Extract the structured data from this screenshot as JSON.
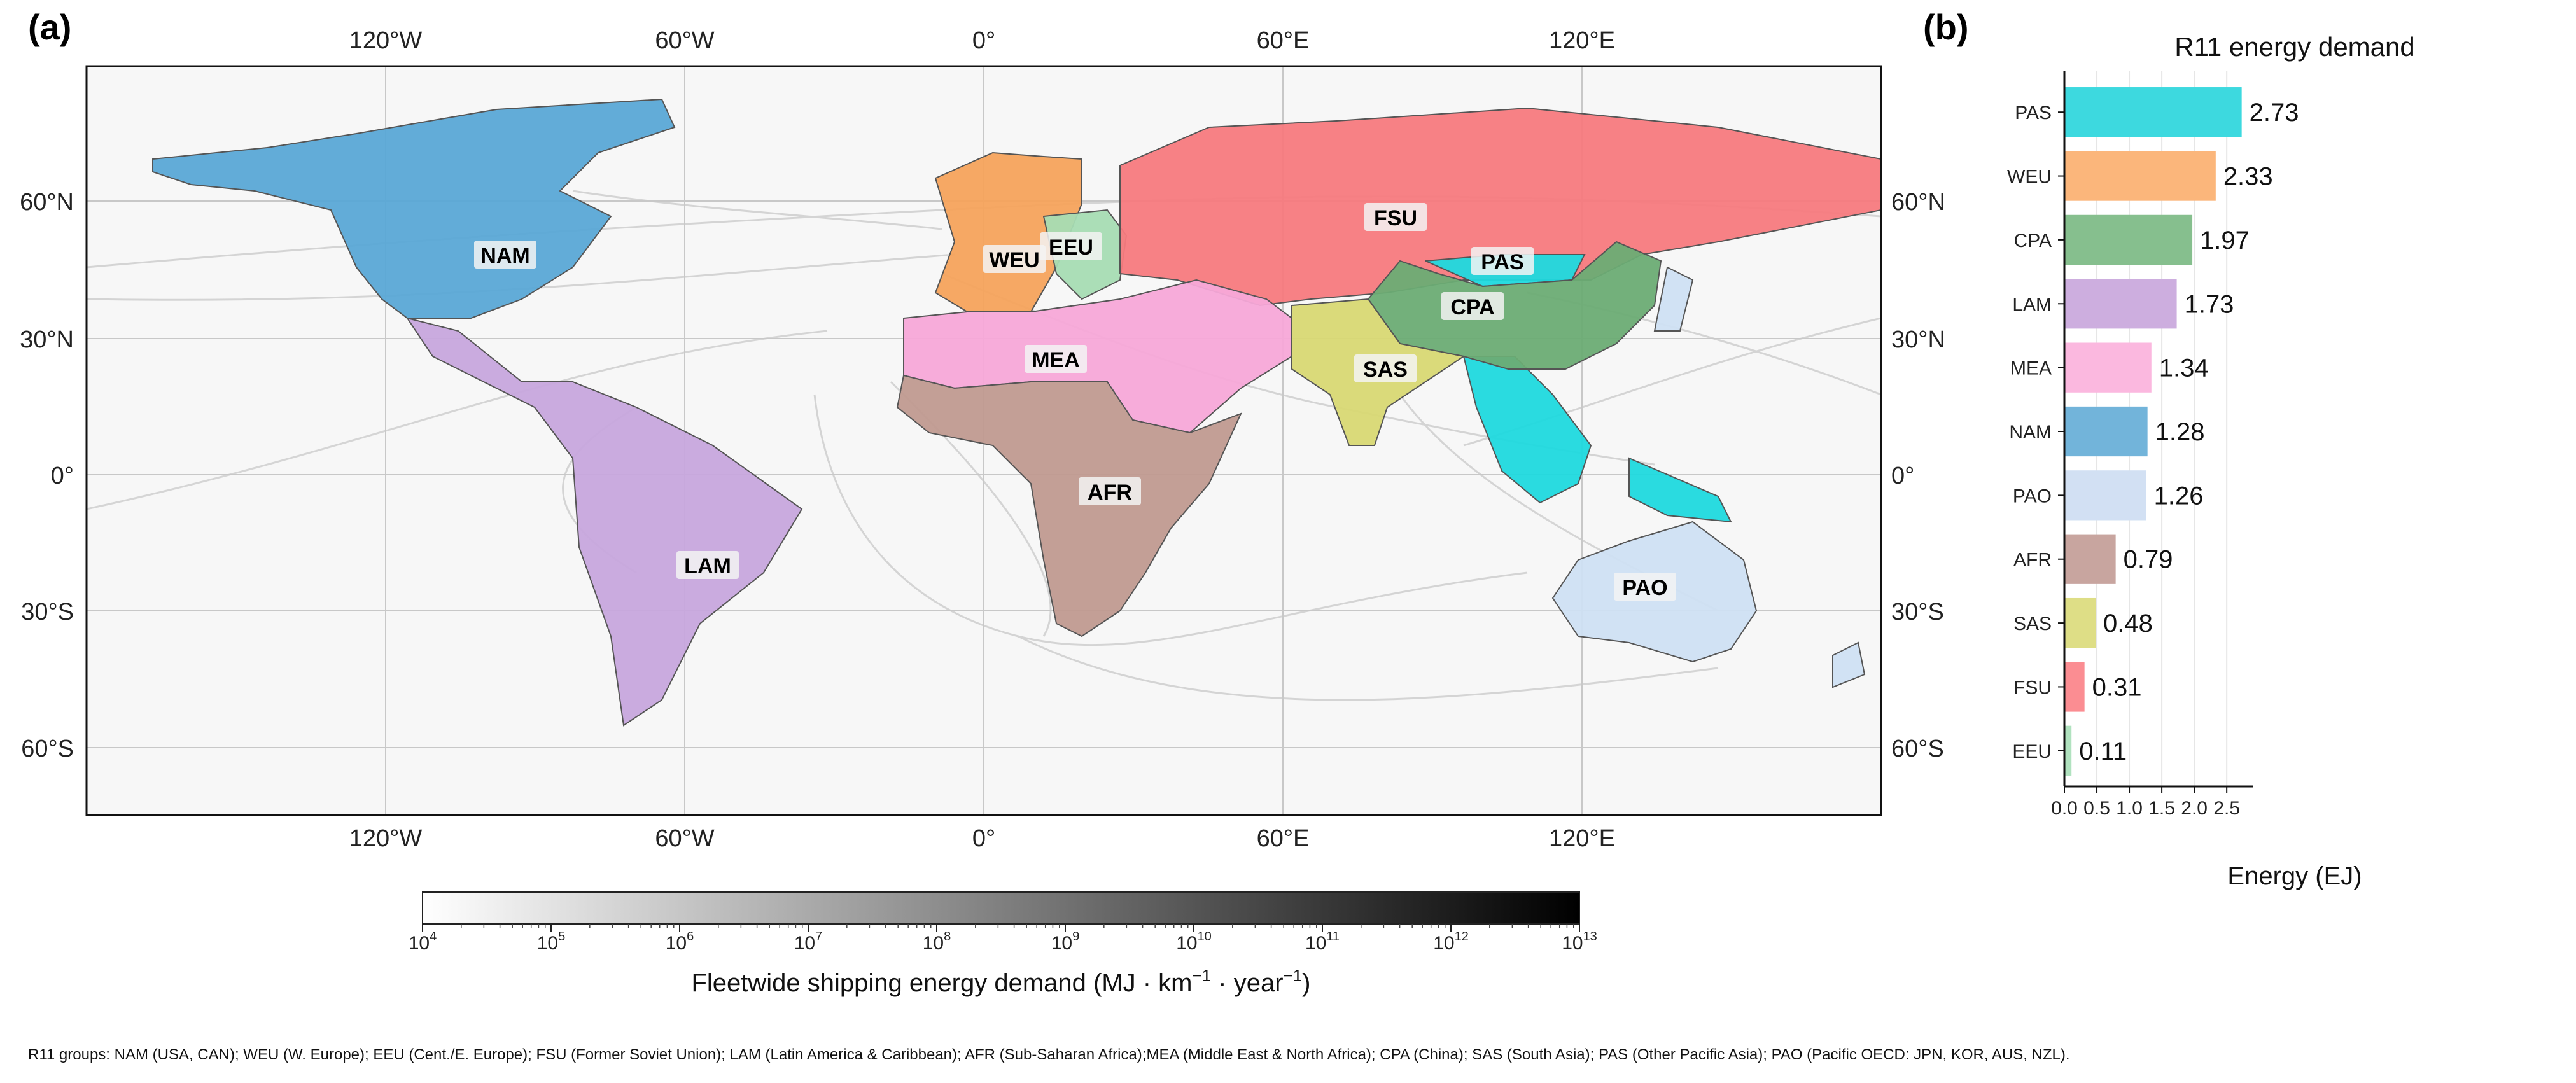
{
  "panels": {
    "a": "(a)",
    "b": "(b)"
  },
  "map": {
    "lon_ticks": [
      "120°W",
      "60°W",
      "0°",
      "60°E",
      "120°E"
    ],
    "lat_ticks": [
      "60°N",
      "30°N",
      "0°",
      "30°S",
      "60°S"
    ],
    "regions": [
      {
        "code": "NAM",
        "color": "#5aa8d6"
      },
      {
        "code": "WEU",
        "color": "#f5a35c"
      },
      {
        "code": "EEU",
        "color": "#a7dcb3"
      },
      {
        "code": "FSU",
        "color": "#f77a7e"
      },
      {
        "code": "PAS",
        "color": "#1fd9de"
      },
      {
        "code": "CPA",
        "color": "#6cac74"
      },
      {
        "code": "MEA",
        "color": "#f7a8d8"
      },
      {
        "code": "SAS",
        "color": "#d8d873"
      },
      {
        "code": "AFR",
        "color": "#c09a90"
      },
      {
        "code": "LAM",
        "color": "#c7a6dd"
      },
      {
        "code": "PAO",
        "color": "#cfe0f3"
      }
    ],
    "colorbar": {
      "ticks": [
        "10",
        "10",
        "10",
        "10",
        "10",
        "10",
        "10",
        "10",
        "10",
        "10"
      ],
      "exponents": [
        "4",
        "5",
        "6",
        "7",
        "8",
        "9",
        "10",
        "11",
        "12",
        "13"
      ],
      "label": "Fleetwide shipping energy demand (MJ · km",
      "label_exp1": "−1",
      "label_mid": " · year",
      "label_exp2": "−1",
      "label_end": ")"
    }
  },
  "chart_data": [
    {
      "type": "bar",
      "orientation": "horizontal",
      "title": "R11 energy demand",
      "xlabel": "Energy (EJ)",
      "ylabel": "",
      "xlim": [
        0,
        2.9
      ],
      "xticks": [
        "0.0",
        "0.5",
        "1.0",
        "1.5",
        "2.0",
        "2.5"
      ],
      "grid": "vertical",
      "categories": [
        "PAS",
        "WEU",
        "CPA",
        "LAM",
        "MEA",
        "NAM",
        "PAO",
        "AFR",
        "SAS",
        "FSU",
        "EEU"
      ],
      "values": [
        2.73,
        2.33,
        1.97,
        1.73,
        1.34,
        1.28,
        1.26,
        0.79,
        0.48,
        0.31,
        0.11
      ],
      "labels": [
        "2.73",
        "2.33",
        "1.97",
        "1.73",
        "1.34",
        "1.28",
        "1.26",
        "0.79",
        "0.48",
        "0.31",
        "0.11"
      ],
      "colors": [
        "#3dd9df",
        "#fbb67b",
        "#86bf8e",
        "#cdaedf",
        "#fbb8df",
        "#72b4da",
        "#d2e0f3",
        "#c8a59f",
        "#dede86",
        "#fb8d92",
        "#b0e2bf"
      ]
    }
  ],
  "footnote": "R11 groups: NAM (USA, CAN); WEU (W. Europe); EEU (Cent./E. Europe); FSU (Former Soviet Union); LAM (Latin America & Caribbean); AFR (Sub-Saharan Africa);MEA (Middle East & North Africa); CPA (China); SAS (South Asia); PAS (Other Pacific Asia); PAO (Pacific OECD: JPN, KOR, AUS, NZL)."
}
